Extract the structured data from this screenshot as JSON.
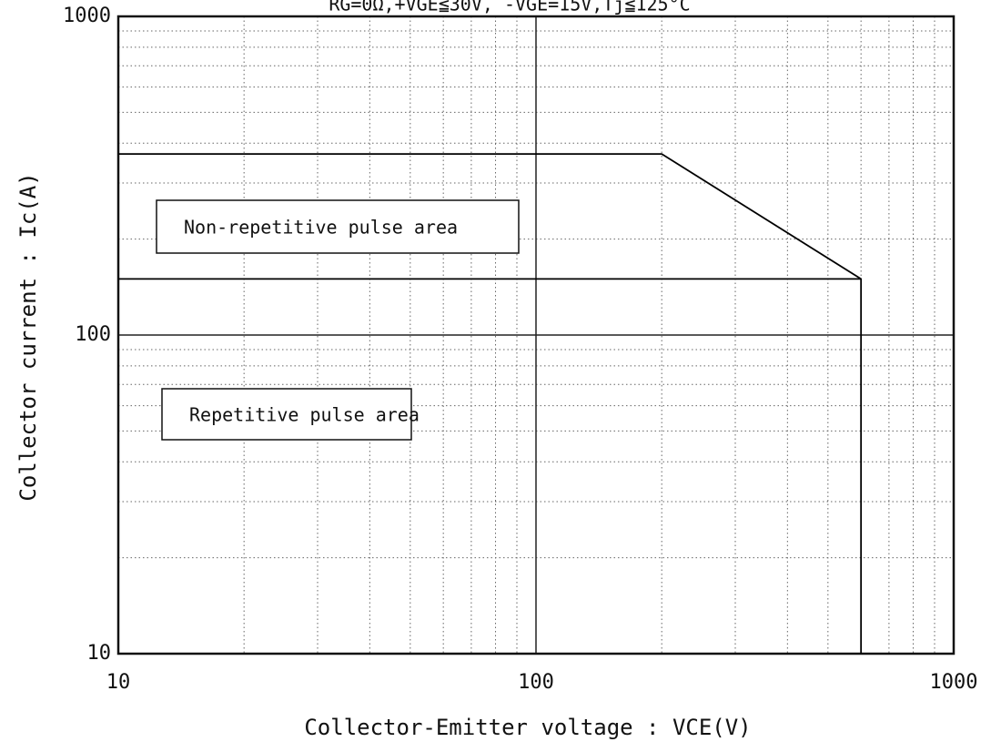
{
  "chart_data": {
    "type": "line",
    "title": "RG=0Ω,+VGE≦30V, -VGE=15V,Tj≦125°C",
    "xlabel": "Collector-Emitter voltage : VCE(V)",
    "ylabel": "Collector current : Ic(A)",
    "log_x": true,
    "log_y": true,
    "grid": true,
    "xlim": [
      10,
      1000
    ],
    "ylim": [
      10,
      1000
    ],
    "xticks": [
      10,
      100,
      1000
    ],
    "yticks": [
      10,
      100,
      1000
    ],
    "xminorticks": [
      20,
      30,
      40,
      50,
      60,
      70,
      80,
      90,
      200,
      300,
      400,
      500,
      600,
      700,
      800,
      900
    ],
    "yminorticks": [
      20,
      30,
      40,
      50,
      60,
      70,
      80,
      90,
      200,
      300,
      400,
      500,
      600,
      700,
      800,
      900
    ],
    "series": [
      {
        "color": "#000000",
        "x": [
          10,
          200,
          600,
          600
        ],
        "values": [
          370,
          370,
          150,
          10
        ]
      },
      {
        "color": "#000000",
        "x": [
          10,
          600
        ],
        "values": [
          150,
          150
        ]
      }
    ],
    "annotations": [
      "Non-repetitive pulse area",
      "Repetitive pulse area"
    ]
  }
}
